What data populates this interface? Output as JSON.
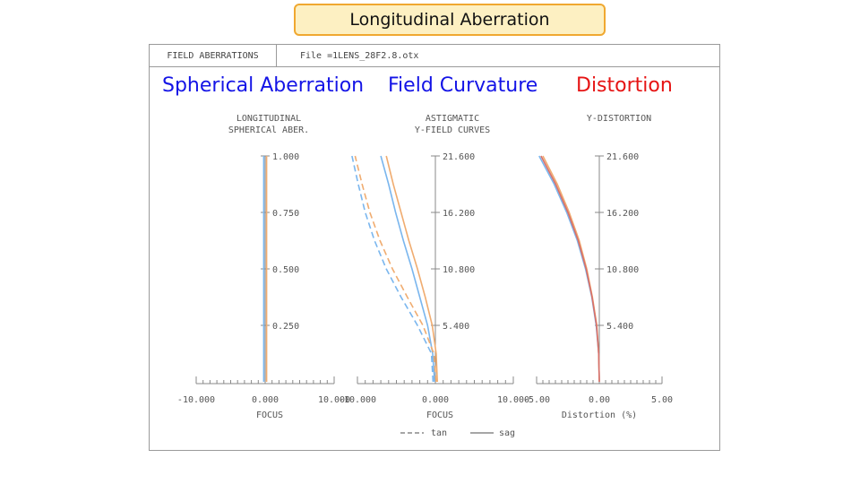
{
  "slide_title": "Longitudinal Aberration",
  "header": {
    "cell1": "FIELD ABERRATIONS",
    "cell2": "File =1LENS_28F2.8.otx"
  },
  "section_titles": {
    "spherical": "Spherical Aberration",
    "field_curvature": "Field Curvature",
    "distortion": "Distortion"
  },
  "colors": {
    "blue_curve": "#7ab6ee",
    "orange_curve": "#f0ac70",
    "red_curve": "#d8706a",
    "axis": "#888888"
  },
  "chart_data": [
    {
      "type": "line",
      "title": "LONGITUDINAL",
      "subtitle": "SPHERICAl ABER.",
      "xlabel": "FOCUS",
      "xlim": [
        -10,
        10
      ],
      "ylim": [
        0,
        1
      ],
      "x_tick_labels": [
        "-10.000",
        "0.000",
        "10.000"
      ],
      "y_tick_labels": [
        "0.250",
        "0.500",
        "0.750",
        "1.000"
      ],
      "series": [
        {
          "color": "#7ab6ee",
          "x": [
            -0.2,
            -0.2
          ],
          "y": [
            0,
            1
          ]
        },
        {
          "color": "#f0ac70",
          "x": [
            0.2,
            0.2
          ],
          "y": [
            0,
            1
          ]
        }
      ]
    },
    {
      "type": "line",
      "title": "ASTIGMATIC",
      "subtitle": "Y-FIELD CURVES",
      "xlabel": "FOCUS",
      "xlim": [
        -10,
        10
      ],
      "ylim": [
        0,
        21.6
      ],
      "x_tick_labels": [
        "-10.000",
        "0.000",
        "10.000"
      ],
      "y_tick_labels": [
        "5.400",
        "10.800",
        "16.200",
        "21.600"
      ],
      "legend": [
        "tan",
        "sag"
      ],
      "series": [
        {
          "legend": "sag",
          "style": "solid",
          "color": "#7ab6ee",
          "y": [
            0,
            2.7,
            5.4,
            8.1,
            10.8,
            13.5,
            16.2,
            18.9,
            21.6
          ],
          "x": [
            -0.1,
            -0.35,
            -1.0,
            -2.0,
            -3.0,
            -4.1,
            -5.1,
            -6.0,
            -7.0
          ]
        },
        {
          "legend": "sag",
          "style": "solid",
          "color": "#f0ac70",
          "y": [
            0,
            2.7,
            5.4,
            8.1,
            10.8,
            13.5,
            16.2,
            18.9,
            21.6
          ],
          "x": [
            0.25,
            0.1,
            -0.4,
            -1.3,
            -2.3,
            -3.4,
            -4.4,
            -5.4,
            -6.3
          ]
        },
        {
          "legend": "tan",
          "style": "dashed",
          "color": "#7ab6ee",
          "y": [
            0,
            2.7,
            5.4,
            8.1,
            10.8,
            13.5,
            16.2,
            18.9,
            21.6
          ],
          "x": [
            -0.3,
            -0.5,
            -2.3,
            -4.4,
            -6.3,
            -7.8,
            -9.0,
            -9.9,
            -10.7
          ]
        },
        {
          "legend": "tan",
          "style": "dashed",
          "color": "#f0ac70",
          "y": [
            0,
            2.7,
            5.4,
            8.1,
            10.8,
            13.5,
            16.2,
            18.9,
            21.6
          ],
          "x": [
            0.1,
            -0.2,
            -1.6,
            -3.6,
            -5.5,
            -7.1,
            -8.4,
            -9.4,
            -10.3
          ]
        }
      ]
    },
    {
      "type": "line",
      "title": "Y-DISTORTION",
      "xlabel": "Distortion (%)",
      "xlim": [
        -5,
        5
      ],
      "ylim": [
        0,
        21.6
      ],
      "x_tick_labels": [
        "-5.00",
        "0.00",
        "5.00"
      ],
      "y_tick_labels": [
        "5.400",
        "10.800",
        "16.200",
        "21.600"
      ],
      "series": [
        {
          "color": "#7ab6ee",
          "y": [
            0,
            2.7,
            5.4,
            8.1,
            10.8,
            13.5,
            16.2,
            18.9,
            21.6
          ],
          "x": [
            0,
            -0.05,
            -0.25,
            -0.6,
            -1.1,
            -1.75,
            -2.6,
            -3.6,
            -4.8
          ]
        },
        {
          "color": "#f0ac70",
          "y": [
            0,
            2.7,
            5.4,
            8.1,
            10.8,
            13.5,
            16.2,
            18.9,
            21.6
          ],
          "x": [
            0,
            -0.05,
            -0.2,
            -0.55,
            -1.0,
            -1.6,
            -2.4,
            -3.35,
            -4.5
          ]
        },
        {
          "color": "#d8706a",
          "y": [
            0,
            2.7,
            5.4,
            8.1,
            10.8,
            13.5,
            16.2,
            18.9,
            21.6
          ],
          "x": [
            0,
            -0.05,
            -0.22,
            -0.58,
            -1.05,
            -1.68,
            -2.5,
            -3.48,
            -4.65
          ]
        }
      ]
    }
  ]
}
